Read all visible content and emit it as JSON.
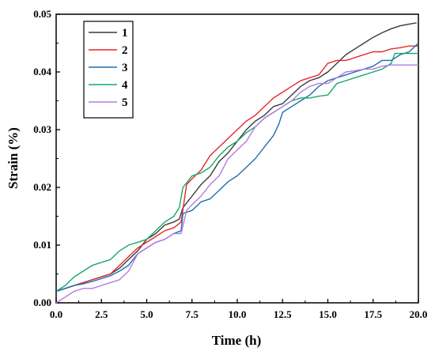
{
  "chart_data": {
    "type": "line",
    "xlabel": "Time (h)",
    "ylabel": "Strain (%)",
    "xlim": [
      0,
      20
    ],
    "ylim": [
      0,
      0.05
    ],
    "xticks": [
      "0.0",
      "2.5",
      "5.0",
      "7.5",
      "10.0",
      "12.5",
      "15.0",
      "17.5",
      "20.0"
    ],
    "yticks": [
      "0.00",
      "0.01",
      "0.02",
      "0.03",
      "0.04",
      "0.05"
    ],
    "grid": false,
    "legend_position": "top-left",
    "series": [
      {
        "name": "1",
        "color": "#3a3a3a",
        "x": [
          0,
          0.5,
          1,
          1.5,
          2,
          2.5,
          3,
          3.5,
          4,
          4.5,
          5,
          5.5,
          6,
          6.5,
          6.8,
          7,
          7.5,
          8,
          8.5,
          9,
          9.5,
          10,
          10.5,
          11,
          11.5,
          12,
          12.5,
          13,
          13.5,
          14,
          14.5,
          15,
          15.5,
          16,
          16.5,
          17,
          17.5,
          18,
          18.5,
          19,
          19.5,
          19.9
        ],
        "y": [
          0.002,
          0.0025,
          0.003,
          0.0035,
          0.004,
          0.0045,
          0.005,
          0.006,
          0.0075,
          0.009,
          0.011,
          0.012,
          0.0135,
          0.014,
          0.0145,
          0.0165,
          0.0185,
          0.0205,
          0.022,
          0.0245,
          0.026,
          0.028,
          0.03,
          0.0315,
          0.0325,
          0.034,
          0.0345,
          0.036,
          0.0375,
          0.0385,
          0.039,
          0.04,
          0.0415,
          0.043,
          0.044,
          0.045,
          0.046,
          0.0468,
          0.0475,
          0.048,
          0.0483,
          0.0485
        ]
      },
      {
        "name": "2",
        "color": "#e8262b",
        "x": [
          0,
          0.5,
          1,
          1.5,
          2,
          2.5,
          3,
          3.5,
          4,
          4.5,
          5,
          5.5,
          6,
          6.5,
          6.9,
          7.2,
          7.5,
          8,
          8.5,
          9,
          9.5,
          10,
          10.5,
          11,
          11.5,
          12,
          12.5,
          13,
          13.5,
          14,
          14.5,
          15,
          15.5,
          16,
          16.5,
          17,
          17.5,
          18,
          18.5,
          19,
          19.5,
          20
        ],
        "y": [
          0.002,
          0.0025,
          0.003,
          0.0035,
          0.004,
          0.0045,
          0.005,
          0.0065,
          0.008,
          0.0095,
          0.0105,
          0.0115,
          0.0125,
          0.013,
          0.014,
          0.0205,
          0.0215,
          0.023,
          0.0255,
          0.027,
          0.0285,
          0.03,
          0.0315,
          0.0325,
          0.034,
          0.0355,
          0.0365,
          0.0375,
          0.0385,
          0.039,
          0.0395,
          0.0415,
          0.042,
          0.042,
          0.0425,
          0.043,
          0.0435,
          0.0435,
          0.044,
          0.0442,
          0.0445,
          0.0445
        ]
      },
      {
        "name": "3",
        "color": "#1b6fb0",
        "x": [
          0,
          0.5,
          1,
          1.5,
          2,
          2.5,
          3,
          3.5,
          4,
          4.5,
          5,
          5.5,
          6,
          6.5,
          6.9,
          7,
          7.5,
          8,
          8.5,
          9,
          9.5,
          10,
          10.5,
          11,
          11.5,
          12,
          12.3,
          12.5,
          13,
          13.5,
          14,
          14.5,
          15,
          15.5,
          16,
          16.5,
          17,
          17.5,
          18,
          18.5,
          19,
          19.5,
          20
        ],
        "y": [
          0.002,
          0.0025,
          0.003,
          0.0033,
          0.0037,
          0.0042,
          0.0047,
          0.0055,
          0.0065,
          0.0085,
          0.0095,
          0.0105,
          0.011,
          0.012,
          0.0125,
          0.0155,
          0.016,
          0.0175,
          0.018,
          0.0195,
          0.021,
          0.022,
          0.0235,
          0.025,
          0.027,
          0.029,
          0.031,
          0.033,
          0.034,
          0.035,
          0.036,
          0.0375,
          0.0385,
          0.039,
          0.0395,
          0.04,
          0.0405,
          0.041,
          0.042,
          0.042,
          0.043,
          0.0435,
          0.045
        ]
      },
      {
        "name": "4",
        "color": "#15a86a",
        "x": [
          0,
          0.5,
          1,
          1.5,
          2,
          2.5,
          3,
          3.5,
          4,
          4.5,
          5,
          5.5,
          6,
          6.5,
          6.8,
          7,
          7.5,
          8,
          8.5,
          9,
          9.5,
          10,
          10.5,
          11,
          11.5,
          12,
          12.5,
          13,
          13.5,
          14,
          14.5,
          15,
          15.5,
          16,
          16.5,
          17,
          17.5,
          18,
          18.5,
          18.7,
          19,
          19.5,
          20
        ],
        "y": [
          0.002,
          0.003,
          0.0045,
          0.0055,
          0.0065,
          0.007,
          0.0075,
          0.009,
          0.01,
          0.0105,
          0.011,
          0.0125,
          0.014,
          0.015,
          0.0165,
          0.02,
          0.022,
          0.0225,
          0.0235,
          0.0255,
          0.027,
          0.028,
          0.0295,
          0.0305,
          0.032,
          0.033,
          0.034,
          0.035,
          0.0355,
          0.0355,
          0.0358,
          0.036,
          0.038,
          0.0385,
          0.039,
          0.0395,
          0.04,
          0.0405,
          0.0415,
          0.0432,
          0.0432,
          0.0432,
          0.0432
        ]
      },
      {
        "name": "5",
        "color": "#b57be0",
        "x": [
          0,
          0.5,
          1,
          1.5,
          2,
          2.5,
          3,
          3.5,
          4,
          4.5,
          5,
          5.5,
          6,
          6.5,
          6.9,
          7.2,
          7.5,
          8,
          8.5,
          9,
          9.5,
          10,
          10.5,
          11,
          11.5,
          12,
          12.5,
          13,
          13.5,
          14,
          14.5,
          15,
          15.5,
          16,
          16.5,
          17,
          17.5,
          18,
          18.5,
          19,
          19.5,
          20
        ],
        "y": [
          0,
          0.001,
          0.002,
          0.0025,
          0.0025,
          0.003,
          0.0035,
          0.004,
          0.0055,
          0.0085,
          0.0095,
          0.0105,
          0.011,
          0.012,
          0.012,
          0.016,
          0.017,
          0.0185,
          0.0205,
          0.022,
          0.025,
          0.0265,
          0.028,
          0.0305,
          0.032,
          0.033,
          0.034,
          0.035,
          0.0365,
          0.0375,
          0.038,
          0.038,
          0.039,
          0.04,
          0.0402,
          0.0405,
          0.0405,
          0.041,
          0.0412,
          0.0412,
          0.0412,
          0.0412
        ]
      }
    ]
  }
}
